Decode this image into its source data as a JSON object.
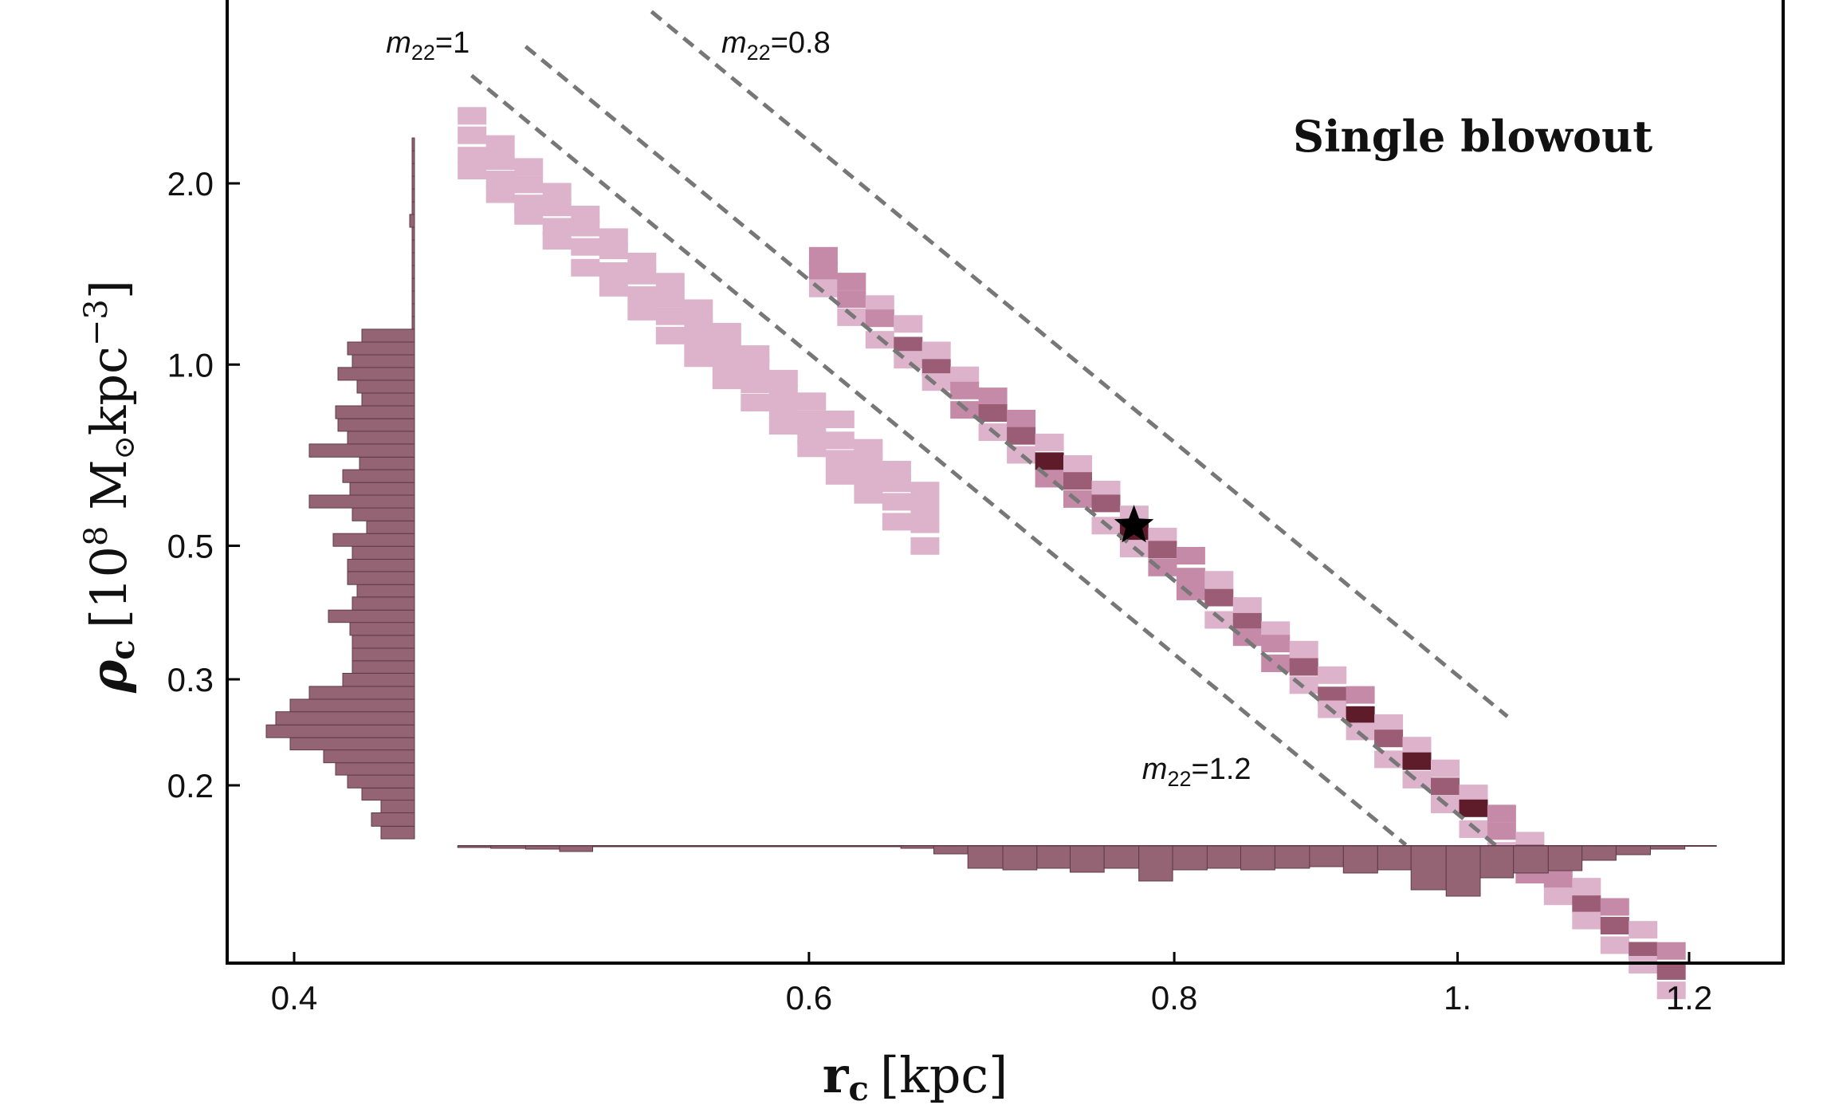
{
  "chart_data": {
    "type": "heatmap",
    "title": "Single blowout",
    "xlabel": {
      "symbol": "r",
      "sub": "c",
      "unit": "[kpc]"
    },
    "ylabel": {
      "symbol": "ρ",
      "sub": "c",
      "unit_pre": "[10",
      "unit_exp": "8",
      "unit_mid": " M",
      "unit_sun": "⊙",
      "unit_post": "kpc",
      "unit_exp2": "−3",
      "unit_close": "]"
    },
    "x_scale": "log",
    "y_scale": "log",
    "xlim": [
      0.38,
      1.26
    ],
    "ylim": [
      0.115,
      4.5
    ],
    "x_ticks": [
      {
        "value": 0.4,
        "label": "0.4"
      },
      {
        "value": 0.6,
        "label": "0.6"
      },
      {
        "value": 0.8,
        "label": "0.8"
      },
      {
        "value": 1.0,
        "label": "1."
      },
      {
        "value": 1.2,
        "label": "1.2"
      }
    ],
    "y_ticks": [
      {
        "value": 0.2,
        "label": "0.2"
      },
      {
        "value": 0.3,
        "label": "0.3"
      },
      {
        "value": 0.5,
        "label": "0.5"
      },
      {
        "value": 1.0,
        "label": "1.0"
      },
      {
        "value": 2.0,
        "label": "2.0"
      }
    ],
    "reference_lines": [
      {
        "m22": 1.0,
        "label_main": "m",
        "label_sub": "22",
        "label_val": "=1",
        "x_range": [
          0.48,
          1.04
        ],
        "label_at": [
          0.43,
          3.3
        ]
      },
      {
        "m22": 0.8,
        "label_main": "m",
        "label_sub": "22",
        "label_val": "=0.8",
        "x_range": [
          0.53,
          1.04
        ],
        "label_at": [
          0.56,
          3.3
        ]
      },
      {
        "m22": 1.2,
        "label_main": "m",
        "label_sub": "22",
        "label_val": "=1.2",
        "x_range": [
          0.46,
          0.96
        ],
        "label_at": [
          0.78,
          0.205
        ]
      }
    ],
    "density_bands": [
      {
        "name": "lower branch",
        "x_range": [
          0.455,
          0.65
        ],
        "rho_at_x0": 2.3,
        "slope": -4.0,
        "width_factor": 1.15
      },
      {
        "name": "main ridge",
        "x_range": [
          0.6,
          1.17
        ],
        "rho_at_x0": 1.4,
        "slope": -4.0,
        "width_factor": 1.12
      }
    ],
    "best_fit": {
      "r_c": 0.775,
      "rho_c": 0.54,
      "marker": "star"
    },
    "x_marginal": {
      "bin_edges": [
        0.455,
        0.467,
        0.48,
        0.493,
        0.506,
        0.52,
        0.534,
        0.549,
        0.564,
        0.579,
        0.595,
        0.611,
        0.628,
        0.645,
        0.662,
        0.68,
        0.699,
        0.718,
        0.737,
        0.757,
        0.778,
        0.799,
        0.821,
        0.843,
        0.866,
        0.89,
        0.914,
        0.939,
        0.964,
        0.991,
        1.018,
        1.045,
        1.074,
        1.103,
        1.133,
        1.164,
        1.196
      ],
      "counts": [
        2,
        3,
        4,
        7,
        1,
        1,
        1,
        1,
        1,
        1,
        1,
        1,
        1,
        3,
        10,
        28,
        30,
        28,
        33,
        28,
        44,
        30,
        28,
        30,
        28,
        26,
        34,
        30,
        55,
        63,
        40,
        34,
        31,
        18,
        11,
        4
      ]
    },
    "y_marginal": {
      "bin_edges": [
        0.163,
        0.171,
        0.18,
        0.189,
        0.198,
        0.208,
        0.218,
        0.229,
        0.24,
        0.252,
        0.265,
        0.278,
        0.292,
        0.307,
        0.322,
        0.338,
        0.355,
        0.373,
        0.391,
        0.411,
        0.431,
        0.453,
        0.475,
        0.499,
        0.524,
        0.55,
        0.578,
        0.607,
        0.637,
        0.669,
        0.702,
        0.738,
        0.775,
        0.813,
        0.854,
        0.897,
        0.942,
        0.989,
        1.038,
        1.09,
        1.145,
        1.202,
        1.262,
        1.325,
        1.391,
        1.461,
        1.534,
        1.611,
        1.691,
        1.776,
        1.864,
        1.958,
        2.056,
        2.158,
        2.266,
        2.38
      ],
      "counts": [
        14,
        18,
        14,
        22,
        28,
        33,
        38,
        52,
        62,
        58,
        52,
        44,
        30,
        26,
        26,
        26,
        27,
        36,
        26,
        24,
        28,
        28,
        26,
        34,
        20,
        26,
        44,
        27,
        30,
        23,
        44,
        28,
        32,
        33,
        22,
        24,
        32,
        26,
        28,
        22,
        1,
        1,
        1,
        1,
        1,
        1,
        1,
        1,
        2,
        1,
        1,
        1,
        1,
        1,
        1
      ]
    },
    "colors": {
      "light": "#ddb3cc",
      "mid": "#c48aa7",
      "dark": "#9b5c76",
      "darkest": "#5e1c2b",
      "hist_fill": "#946475",
      "hist_edge": "#5e3a47",
      "ref_line": "#777777"
    }
  }
}
